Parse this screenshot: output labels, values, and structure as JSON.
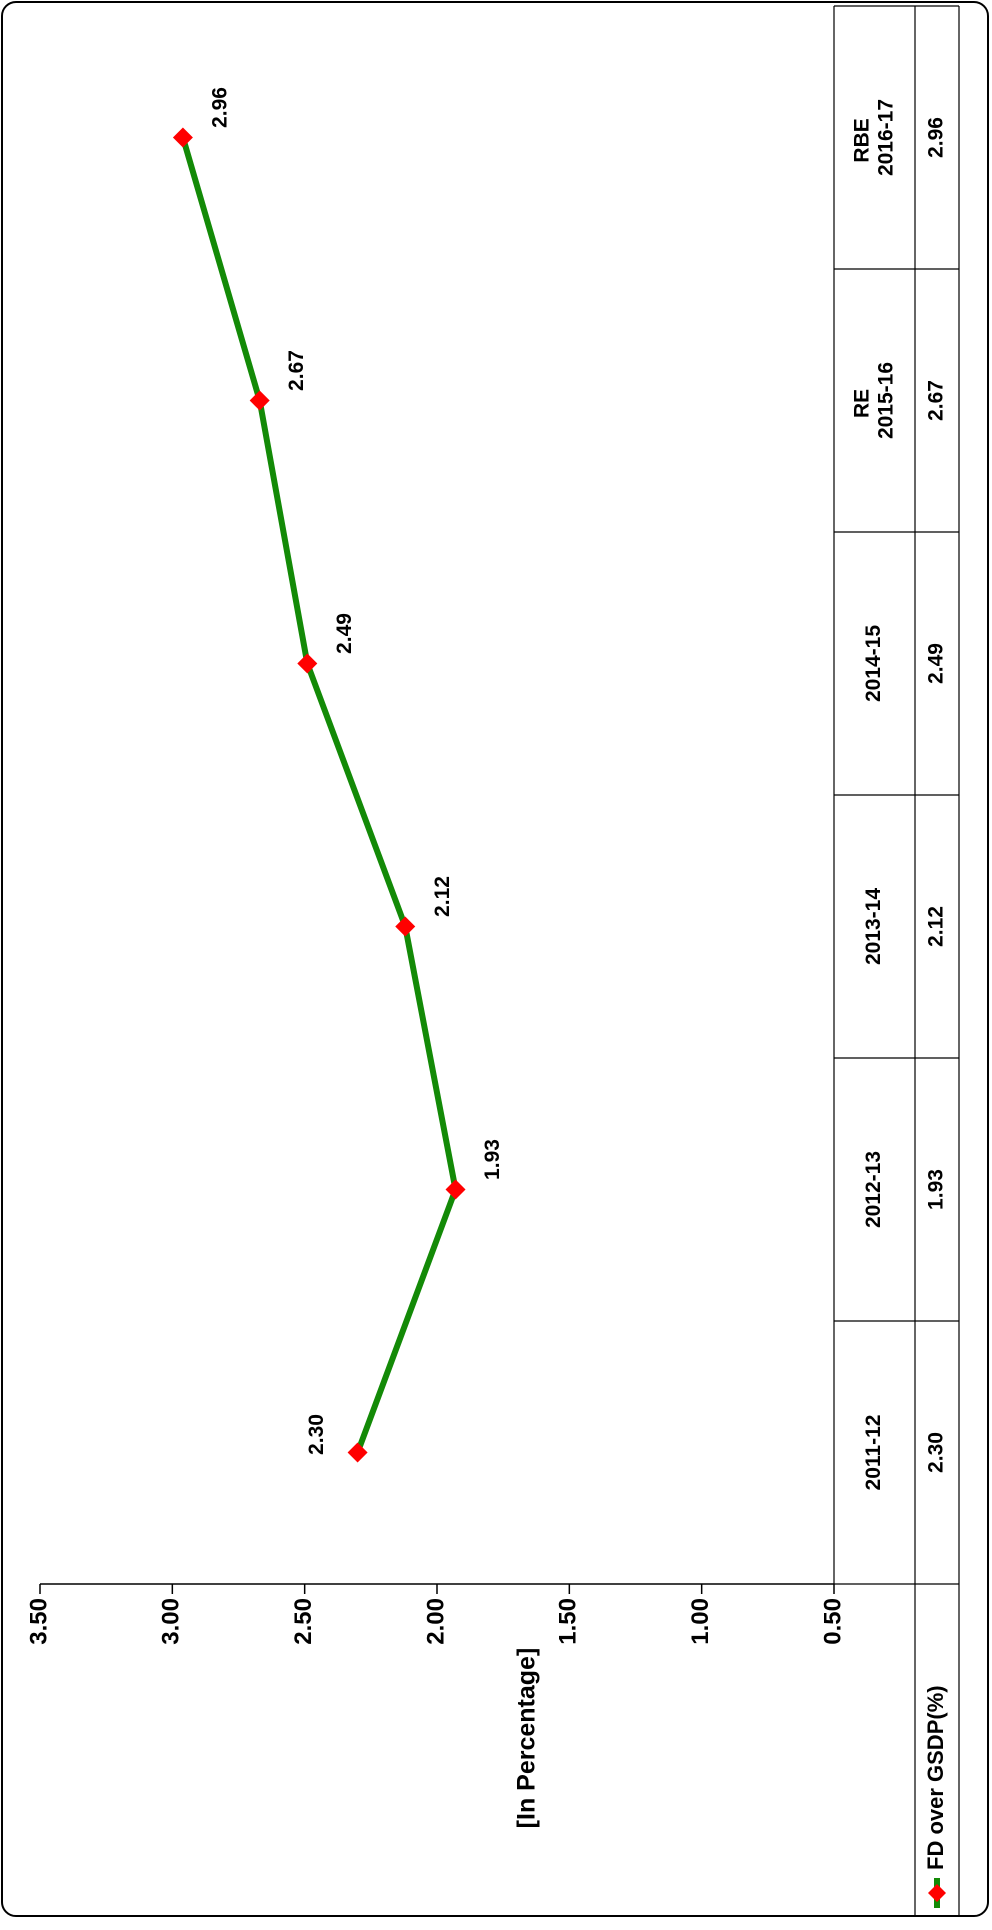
{
  "chart_data": {
    "type": "line",
    "y_axis_label": "[In Percentage]",
    "categories": [
      "2011-12",
      "2012-13",
      "2013-14",
      "2014-15",
      "RE 2015-16",
      "RBE 2016-17"
    ],
    "series": [
      {
        "name": "FD over GSDP(%)",
        "color": "#138a07",
        "marker_color": "#ff0000",
        "values": [
          2.3,
          1.93,
          2.12,
          2.49,
          2.67,
          2.96
        ],
        "value_labels": [
          "2.30",
          "1.93",
          "2.12",
          "2.49",
          "2.67",
          "2.96"
        ]
      }
    ],
    "ylim": [
      0.5,
      3.5
    ],
    "yticks": [
      {
        "value": 0.5,
        "label": "0.50"
      },
      {
        "value": 1,
        "label": "1.00"
      },
      {
        "value": 1.5,
        "label": "1.50"
      },
      {
        "value": 2,
        "label": "2.00"
      },
      {
        "value": 2.5,
        "label": "2.50"
      },
      {
        "value": 3,
        "label": "3.00"
      },
      {
        "value": 3.5,
        "label": "3.50"
      }
    ],
    "legend": "bottom-left",
    "data_table": true
  }
}
